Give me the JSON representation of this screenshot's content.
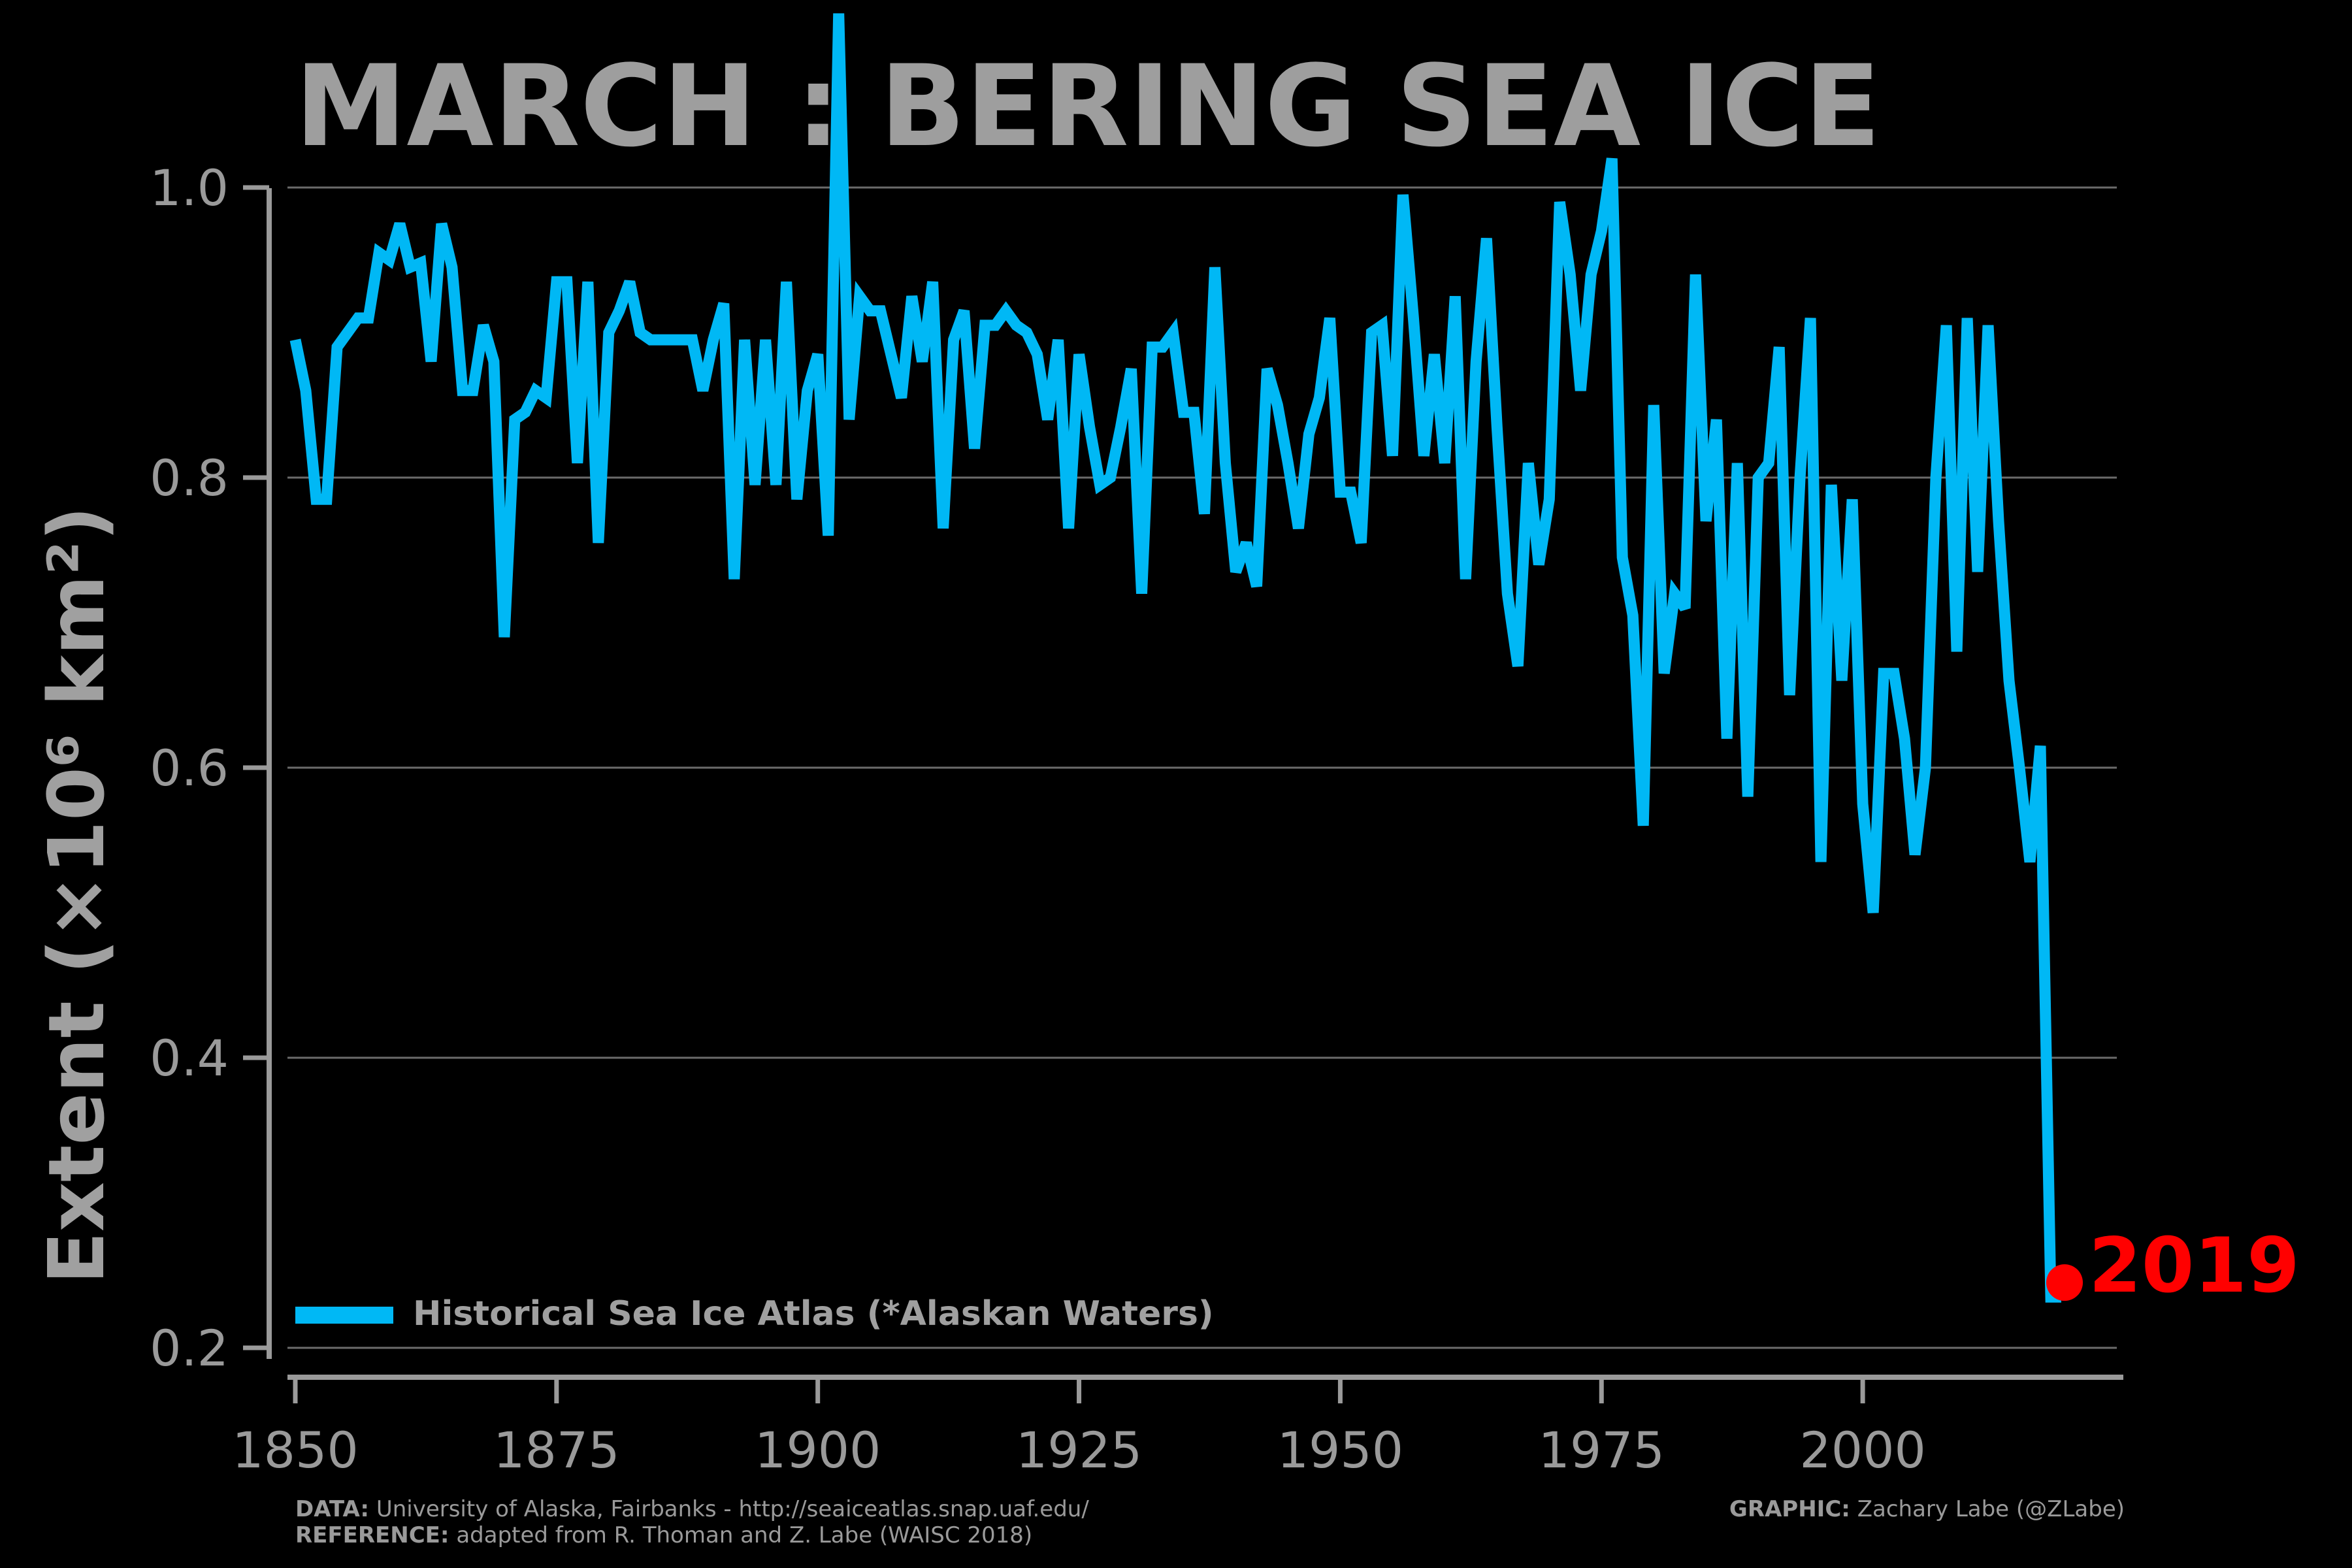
{
  "chart_data": {
    "type": "line",
    "title": "MARCH : BERING SEA ICE",
    "ylabel": "Extent (×10⁶ km²)",
    "xlim": [
      1850,
      2019
    ],
    "ylim": [
      0.2,
      1.0
    ],
    "xticks": [
      "1850",
      "1875",
      "1900",
      "1925",
      "1950",
      "1975",
      "2000"
    ],
    "yticks": [
      "0.2",
      "0.4",
      "0.6",
      "0.8",
      "1.0"
    ],
    "grid": true,
    "legend_position": "lower-left",
    "series": [
      {
        "name": "Historical Sea Ice Atlas (*Alaskan Waters)",
        "color": "#00b8f5",
        "x": [
          1850,
          1851,
          1852,
          1853,
          1854,
          1855,
          1856,
          1857,
          1858,
          1859,
          1860,
          1861,
          1862,
          1863,
          1864,
          1865,
          1866,
          1867,
          1868,
          1869,
          1870,
          1871,
          1872,
          1873,
          1874,
          1875,
          1876,
          1877,
          1878,
          1879,
          1880,
          1881,
          1882,
          1883,
          1884,
          1885,
          1886,
          1887,
          1888,
          1889,
          1890,
          1891,
          1892,
          1893,
          1894,
          1895,
          1896,
          1897,
          1898,
          1899,
          1900,
          1901,
          1902,
          1903,
          1904,
          1905,
          1906,
          1907,
          1908,
          1909,
          1910,
          1911,
          1912,
          1913,
          1914,
          1915,
          1916,
          1917,
          1918,
          1919,
          1920,
          1921,
          1922,
          1923,
          1924,
          1925,
          1926,
          1927,
          1928,
          1929,
          1930,
          1931,
          1932,
          1933,
          1934,
          1935,
          1936,
          1937,
          1938,
          1939,
          1940,
          1941,
          1942,
          1943,
          1944,
          1945,
          1946,
          1947,
          1948,
          1949,
          1950,
          1951,
          1952,
          1953,
          1954,
          1955,
          1956,
          1957,
          1958,
          1959,
          1960,
          1961,
          1962,
          1963,
          1964,
          1965,
          1966,
          1967,
          1968,
          1969,
          1970,
          1971,
          1972,
          1973,
          1974,
          1975,
          1976,
          1977,
          1978,
          1979,
          1980,
          1981,
          1982,
          1983,
          1984,
          1985,
          1986,
          1987,
          1988,
          1989,
          1990,
          1991,
          1992,
          1993,
          1994,
          1995,
          1996,
          1997,
          1998,
          1999,
          2000,
          2001,
          2002,
          2003,
          2004,
          2005,
          2006,
          2007,
          2008,
          2009,
          2010,
          2011,
          2012,
          2013,
          2014,
          2015,
          2016,
          2017,
          2018,
          2019
        ],
        "y": [
          0.895,
          0.86,
          0.785,
          0.785,
          0.89,
          0.9,
          0.91,
          0.91,
          0.955,
          0.95,
          0.975,
          0.945,
          0.948,
          0.88,
          0.975,
          0.945,
          0.86,
          0.86,
          0.905,
          0.88,
          0.69,
          0.84,
          0.845,
          0.86,
          0.855,
          0.935,
          0.935,
          0.81,
          0.935,
          0.755,
          0.9,
          0.915,
          0.935,
          0.9,
          0.895,
          0.895,
          0.895,
          0.895,
          0.895,
          0.86,
          0.895,
          0.92,
          0.73,
          0.895,
          0.795,
          0.895,
          0.795,
          0.935,
          0.785,
          0.86,
          0.885,
          0.76,
          1.12,
          0.84,
          0.925,
          0.915,
          0.915,
          0.885,
          0.855,
          0.925,
          0.88,
          0.935,
          0.765,
          0.895,
          0.915,
          0.82,
          0.905,
          0.905,
          0.915,
          0.905,
          0.9,
          0.885,
          0.84,
          0.895,
          0.765,
          0.885,
          0.835,
          0.795,
          0.8,
          0.835,
          0.875,
          0.72,
          0.89,
          0.89,
          0.9,
          0.845,
          0.845,
          0.775,
          0.945,
          0.81,
          0.735,
          0.755,
          0.725,
          0.875,
          0.85,
          0.81,
          0.765,
          0.83,
          0.855,
          0.91,
          0.79,
          0.79,
          0.755,
          0.9,
          0.905,
          0.815,
          0.995,
          0.91,
          0.815,
          0.885,
          0.81,
          0.925,
          0.73,
          0.88,
          0.965,
          0.835,
          0.72,
          0.67,
          0.81,
          0.74,
          0.785,
          0.99,
          0.94,
          0.86,
          0.94,
          0.97,
          1.02,
          0.745,
          0.705,
          0.56,
          0.85,
          0.665,
          0.72,
          0.71,
          0.94,
          0.77,
          0.84,
          0.62,
          0.81,
          0.58,
          0.8,
          0.81,
          0.89,
          0.65,
          0.8,
          0.91,
          0.535,
          0.795,
          0.66,
          0.785,
          0.575,
          0.5,
          0.665,
          0.665,
          0.62,
          0.54,
          0.6,
          0.8,
          0.905,
          0.68,
          0.91,
          0.735,
          0.905,
          0.77,
          0.66,
          0.6,
          0.535,
          0.615,
          0.235,
          0.235
        ]
      }
    ],
    "highlight": {
      "x": 2019,
      "y": 0.245,
      "label": "2019",
      "color": "#ff0000"
    }
  },
  "footer": {
    "data_label": "DATA:",
    "data_text": "University of Alaska, Fairbanks - http://seaiceatlas.snap.uaf.edu/",
    "reference_label": "REFERENCE:",
    "reference_text": "adapted from R. Thoman and Z. Labe (WAISC 2018)",
    "graphic_label": "GRAPHIC:",
    "graphic_text": "Zachary Labe (@ZLabe)"
  }
}
